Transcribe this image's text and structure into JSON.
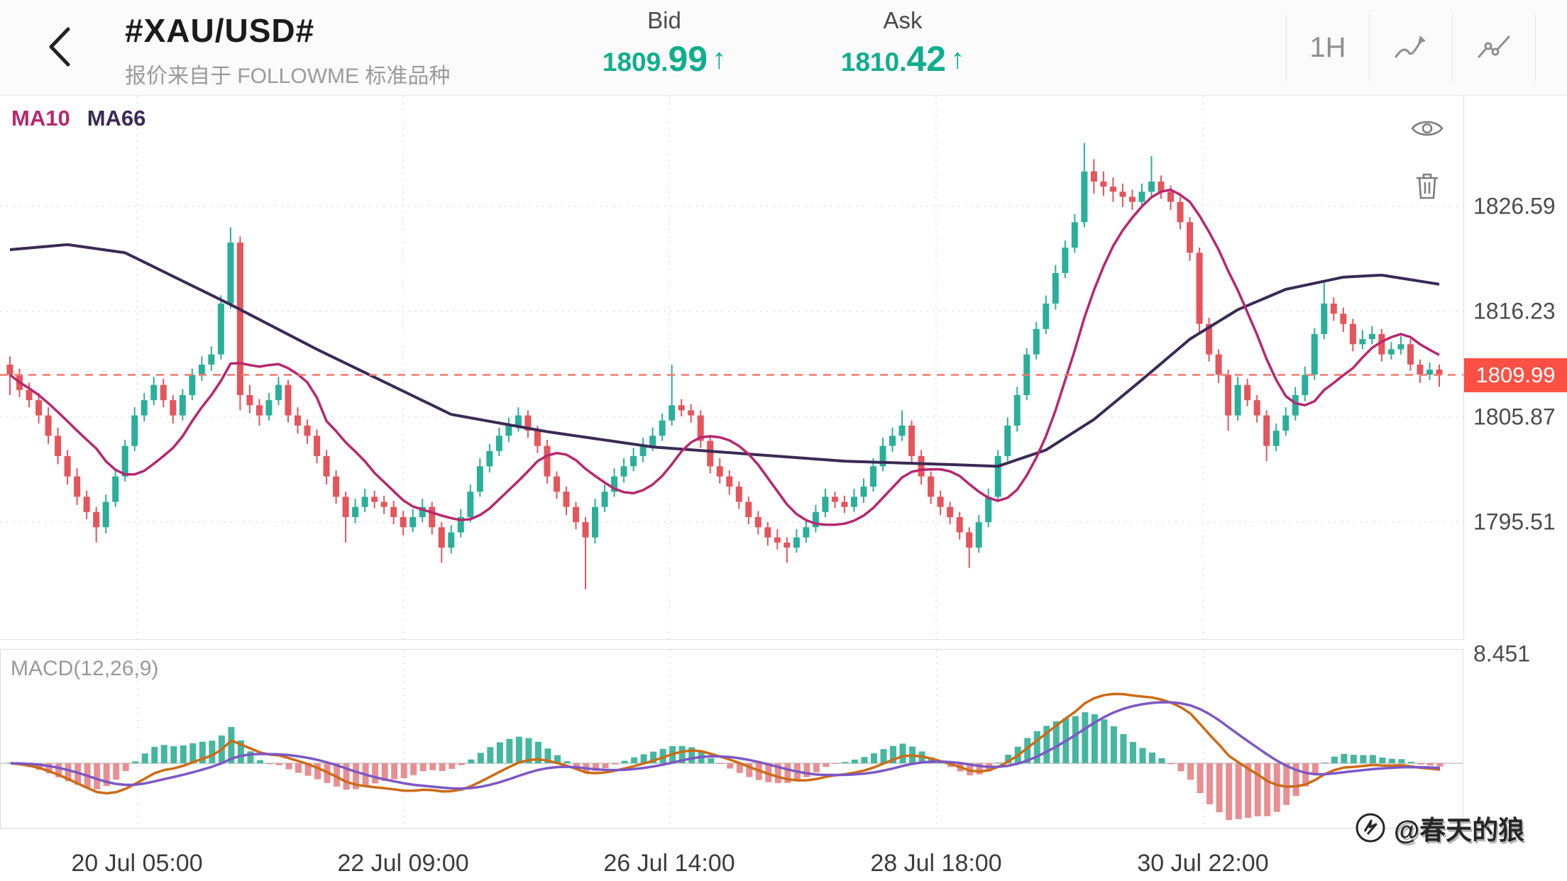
{
  "header": {
    "symbol": "#XAU/USD#",
    "source_note": "报价来自于 FOLLOWME 标准品种",
    "bid_label": "Bid",
    "bid_value": "1809.99",
    "ask_label": "Ask",
    "ask_value": "1810.42",
    "up_arrow": "↑",
    "timeframe": "1H"
  },
  "chart": {
    "ma_labels": {
      "ma10": "MA10",
      "ma66": "MA66"
    },
    "price_axis": [
      "1826.59",
      "1816.23",
      "1805.87",
      "1795.51"
    ],
    "current_price": "1809.99",
    "macd_label": "MACD(12,26,9)",
    "macd_axis_value": "8.451",
    "time_axis": [
      "20 Jul 05:00",
      "22 Jul 09:00",
      "26 Jul 14:00",
      "28 Jul 18:00",
      "30 Jul 22:00"
    ]
  },
  "watermark": "@春天的狼",
  "colors": {
    "candle_up": "#2aaf9b",
    "candle_down": "#e4555c",
    "ma10": "#b8266f",
    "ma66": "#3a2a56",
    "last_price_line": "#f4796d",
    "price_tag_bg": "#fb5044",
    "quote_green": "#0fae8d",
    "macd_bar_up": "#45b7a0",
    "macd_bar_down": "#e78f92",
    "macd_dif": "#cc6b16",
    "macd_dea": "#7d57c5"
  },
  "chart_data": {
    "type": "candlestick",
    "symbol": "XAU/USD",
    "timeframe": "1H",
    "title": "#XAU/USD# 1H candlestick chart with MA10, MA66 overlays and MACD(12,26,9) sub-chart",
    "x_tick_labels": [
      "20 Jul 05:00",
      "22 Jul 09:00",
      "26 Jul 14:00",
      "28 Jul 18:00",
      "30 Jul 22:00"
    ],
    "y_ticks": [
      1826.59,
      1816.23,
      1805.87,
      1795.51
    ],
    "y_range_visible": [
      1784.4,
      1837.5
    ],
    "last_price": 1809.99,
    "bid": 1809.99,
    "ask": 1810.42,
    "macd_scale_max": 8.451,
    "sub_indicator": {
      "type": "macd",
      "params": [
        12,
        26,
        9
      ]
    },
    "overlays": [
      {
        "name": "MA10",
        "color": "#b8266f"
      },
      {
        "name": "MA66",
        "color": "#3a2a56"
      }
    ],
    "ohlc": [
      [
        1811.0,
        1811.8,
        1808.0,
        1810.0
      ],
      [
        1810.0,
        1810.6,
        1807.8,
        1808.5
      ],
      [
        1808.5,
        1809.2,
        1806.8,
        1807.5
      ],
      [
        1807.5,
        1808.2,
        1805.2,
        1806.0
      ],
      [
        1806.0,
        1806.8,
        1803.2,
        1804.0
      ],
      [
        1804.0,
        1804.8,
        1801.2,
        1802.0
      ],
      [
        1802.0,
        1802.6,
        1799.2,
        1800.0
      ],
      [
        1800.0,
        1800.8,
        1797.2,
        1798.0
      ],
      [
        1798.0,
        1798.6,
        1795.8,
        1796.5
      ],
      [
        1796.5,
        1797.0,
        1793.5,
        1795.0
      ],
      [
        1795.0,
        1798.2,
        1794.4,
        1797.5
      ],
      [
        1797.5,
        1800.8,
        1797.0,
        1800.0
      ],
      [
        1800.0,
        1803.6,
        1799.5,
        1803.0
      ],
      [
        1803.0,
        1806.8,
        1802.5,
        1806.0
      ],
      [
        1806.0,
        1808.2,
        1805.4,
        1807.5
      ],
      [
        1807.5,
        1809.8,
        1807.0,
        1809.0
      ],
      [
        1809.0,
        1809.6,
        1806.8,
        1807.5
      ],
      [
        1807.5,
        1808.0,
        1805.2,
        1806.0
      ],
      [
        1806.0,
        1808.6,
        1805.5,
        1808.0
      ],
      [
        1808.0,
        1810.6,
        1807.5,
        1810.0
      ],
      [
        1810.0,
        1811.8,
        1809.4,
        1811.0
      ],
      [
        1811.0,
        1812.8,
        1810.4,
        1812.0
      ],
      [
        1812.0,
        1817.8,
        1811.5,
        1817.0
      ],
      [
        1817.0,
        1824.5,
        1816.5,
        1823.0
      ],
      [
        1823.0,
        1823.6,
        1806.5,
        1808.0
      ],
      [
        1808.0,
        1809.0,
        1806.2,
        1807.0
      ],
      [
        1807.0,
        1807.6,
        1805.0,
        1806.0
      ],
      [
        1806.0,
        1808.2,
        1805.5,
        1807.5
      ],
      [
        1807.5,
        1809.8,
        1807.0,
        1809.0
      ],
      [
        1809.0,
        1809.5,
        1805.3,
        1806.0
      ],
      [
        1806.0,
        1806.8,
        1804.2,
        1805.0
      ],
      [
        1805.0,
        1805.6,
        1803.2,
        1804.0
      ],
      [
        1804.0,
        1804.6,
        1801.3,
        1802.0
      ],
      [
        1802.0,
        1802.6,
        1799.2,
        1800.0
      ],
      [
        1800.0,
        1800.6,
        1797.3,
        1798.0
      ],
      [
        1798.0,
        1798.5,
        1793.5,
        1796.0
      ],
      [
        1796.0,
        1797.8,
        1795.4,
        1797.0
      ],
      [
        1797.0,
        1798.8,
        1796.5,
        1798.0
      ],
      [
        1798.0,
        1798.6,
        1796.9,
        1797.5
      ],
      [
        1797.5,
        1798.1,
        1796.3,
        1797.0
      ],
      [
        1797.0,
        1797.6,
        1795.3,
        1796.0
      ],
      [
        1796.0,
        1796.6,
        1794.2,
        1795.0
      ],
      [
        1795.0,
        1796.8,
        1794.5,
        1796.0
      ],
      [
        1796.0,
        1797.8,
        1795.5,
        1797.0
      ],
      [
        1797.0,
        1797.5,
        1794.3,
        1795.0
      ],
      [
        1795.0,
        1795.5,
        1791.5,
        1793.0
      ],
      [
        1793.0,
        1795.2,
        1792.4,
        1794.5
      ],
      [
        1794.5,
        1796.8,
        1794.0,
        1796.0
      ],
      [
        1796.0,
        1799.2,
        1795.5,
        1798.5
      ],
      [
        1798.5,
        1801.8,
        1798.0,
        1801.0
      ],
      [
        1801.0,
        1803.2,
        1800.4,
        1802.5
      ],
      [
        1802.5,
        1804.8,
        1802.0,
        1804.0
      ],
      [
        1804.0,
        1805.8,
        1803.4,
        1805.0
      ],
      [
        1805.0,
        1806.8,
        1804.4,
        1806.0
      ],
      [
        1806.0,
        1806.5,
        1803.8,
        1804.5
      ],
      [
        1804.5,
        1805.0,
        1802.3,
        1803.0
      ],
      [
        1803.0,
        1803.6,
        1799.3,
        1800.0
      ],
      [
        1800.0,
        1800.5,
        1797.8,
        1798.5
      ],
      [
        1798.5,
        1799.0,
        1796.2,
        1797.0
      ],
      [
        1797.0,
        1797.5,
        1794.8,
        1795.5
      ],
      [
        1795.5,
        1796.0,
        1788.9,
        1794.0
      ],
      [
        1794.0,
        1797.8,
        1793.4,
        1797.0
      ],
      [
        1797.0,
        1799.2,
        1796.5,
        1798.5
      ],
      [
        1798.5,
        1800.8,
        1798.0,
        1800.0
      ],
      [
        1800.0,
        1801.8,
        1799.4,
        1801.0
      ],
      [
        1801.0,
        1802.8,
        1800.5,
        1802.0
      ],
      [
        1802.0,
        1803.8,
        1801.4,
        1803.0
      ],
      [
        1803.0,
        1804.8,
        1802.5,
        1804.0
      ],
      [
        1804.0,
        1806.2,
        1803.5,
        1805.5
      ],
      [
        1805.5,
        1811.0,
        1805.0,
        1807.0
      ],
      [
        1807.0,
        1807.6,
        1805.9,
        1806.5
      ],
      [
        1806.5,
        1807.1,
        1805.3,
        1806.0
      ],
      [
        1806.0,
        1806.5,
        1802.8,
        1803.5
      ],
      [
        1803.5,
        1804.0,
        1800.3,
        1801.0
      ],
      [
        1801.0,
        1801.8,
        1799.3,
        1800.0
      ],
      [
        1800.0,
        1800.6,
        1798.2,
        1799.0
      ],
      [
        1799.0,
        1799.5,
        1796.8,
        1797.5
      ],
      [
        1797.5,
        1798.0,
        1795.3,
        1796.0
      ],
      [
        1796.0,
        1796.6,
        1794.3,
        1795.0
      ],
      [
        1795.0,
        1795.5,
        1793.2,
        1794.0
      ],
      [
        1794.0,
        1794.8,
        1792.8,
        1793.5
      ],
      [
        1793.5,
        1794.0,
        1791.5,
        1793.0
      ],
      [
        1793.0,
        1794.8,
        1792.5,
        1794.0
      ],
      [
        1794.0,
        1795.8,
        1793.5,
        1795.0
      ],
      [
        1795.0,
        1797.2,
        1794.5,
        1796.5
      ],
      [
        1796.5,
        1798.8,
        1796.0,
        1798.0
      ],
      [
        1798.0,
        1798.5,
        1796.9,
        1797.5
      ],
      [
        1797.5,
        1798.1,
        1796.4,
        1797.0
      ],
      [
        1797.0,
        1798.8,
        1796.5,
        1798.0
      ],
      [
        1798.0,
        1799.8,
        1797.4,
        1799.0
      ],
      [
        1799.0,
        1801.8,
        1798.5,
        1801.0
      ],
      [
        1801.0,
        1803.8,
        1800.5,
        1803.0
      ],
      [
        1803.0,
        1804.8,
        1802.4,
        1804.0
      ],
      [
        1804.0,
        1806.5,
        1803.5,
        1805.0
      ],
      [
        1805.0,
        1805.5,
        1801.3,
        1802.0
      ],
      [
        1802.0,
        1802.6,
        1799.2,
        1800.0
      ],
      [
        1800.0,
        1800.5,
        1797.3,
        1798.0
      ],
      [
        1798.0,
        1798.6,
        1796.2,
        1797.0
      ],
      [
        1797.0,
        1797.5,
        1795.3,
        1796.0
      ],
      [
        1796.0,
        1796.5,
        1793.8,
        1794.5
      ],
      [
        1794.5,
        1795.0,
        1791.0,
        1793.0
      ],
      [
        1793.0,
        1796.2,
        1792.5,
        1795.5
      ],
      [
        1795.5,
        1798.8,
        1795.0,
        1798.0
      ],
      [
        1798.0,
        1802.6,
        1797.5,
        1802.0
      ],
      [
        1802.0,
        1805.8,
        1801.5,
        1805.0
      ],
      [
        1805.0,
        1808.8,
        1804.4,
        1808.0
      ],
      [
        1808.0,
        1812.6,
        1807.5,
        1812.0
      ],
      [
        1812.0,
        1815.2,
        1811.5,
        1814.5
      ],
      [
        1814.5,
        1817.8,
        1814.0,
        1817.0
      ],
      [
        1817.0,
        1820.8,
        1816.4,
        1820.0
      ],
      [
        1820.0,
        1823.2,
        1819.5,
        1822.5
      ],
      [
        1822.5,
        1825.8,
        1822.0,
        1825.0
      ],
      [
        1825.0,
        1832.8,
        1824.5,
        1830.0
      ],
      [
        1830.0,
        1831.2,
        1827.8,
        1829.0
      ],
      [
        1829.0,
        1830.0,
        1827.6,
        1828.5
      ],
      [
        1828.5,
        1829.4,
        1827.0,
        1828.0
      ],
      [
        1828.0,
        1828.8,
        1826.5,
        1827.5
      ],
      [
        1827.5,
        1828.2,
        1826.2,
        1827.0
      ],
      [
        1827.0,
        1828.8,
        1826.5,
        1828.0
      ],
      [
        1828.0,
        1831.5,
        1827.5,
        1829.0
      ],
      [
        1829.0,
        1829.6,
        1827.3,
        1828.0
      ],
      [
        1828.0,
        1828.6,
        1826.2,
        1827.0
      ],
      [
        1827.0,
        1827.5,
        1824.3,
        1825.0
      ],
      [
        1825.0,
        1825.5,
        1821.2,
        1822.0
      ],
      [
        1822.0,
        1822.5,
        1814.2,
        1815.0
      ],
      [
        1815.0,
        1815.6,
        1811.3,
        1812.0
      ],
      [
        1812.0,
        1812.5,
        1809.2,
        1810.0
      ],
      [
        1810.0,
        1810.5,
        1804.5,
        1806.0
      ],
      [
        1806.0,
        1809.8,
        1805.5,
        1809.0
      ],
      [
        1809.0,
        1809.6,
        1806.9,
        1807.5
      ],
      [
        1807.5,
        1808.0,
        1805.3,
        1806.0
      ],
      [
        1806.0,
        1806.5,
        1801.5,
        1803.0
      ],
      [
        1803.0,
        1805.2,
        1802.5,
        1804.5
      ],
      [
        1804.5,
        1806.8,
        1804.0,
        1806.0
      ],
      [
        1806.0,
        1808.8,
        1805.5,
        1808.0
      ],
      [
        1808.0,
        1810.8,
        1807.4,
        1810.0
      ],
      [
        1810.0,
        1814.6,
        1809.5,
        1814.0
      ],
      [
        1814.0,
        1819.2,
        1813.5,
        1817.0
      ],
      [
        1817.0,
        1817.6,
        1815.3,
        1816.0
      ],
      [
        1816.0,
        1816.6,
        1814.2,
        1815.0
      ],
      [
        1815.0,
        1815.5,
        1812.3,
        1813.0
      ],
      [
        1813.0,
        1814.4,
        1812.5,
        1813.5
      ],
      [
        1813.5,
        1814.8,
        1813.0,
        1814.0
      ],
      [
        1814.0,
        1814.5,
        1811.3,
        1812.0
      ],
      [
        1812.0,
        1813.2,
        1811.5,
        1812.5
      ],
      [
        1812.5,
        1813.8,
        1812.0,
        1813.0
      ],
      [
        1813.0,
        1813.5,
        1810.4,
        1811.0
      ],
      [
        1811.0,
        1811.5,
        1809.2,
        1810.0
      ],
      [
        1810.0,
        1811.2,
        1809.5,
        1810.5
      ],
      [
        1810.5,
        1811.0,
        1808.8,
        1809.99
      ]
    ],
    "ma66_waypoints": [
      [
        0,
        1822.3
      ],
      [
        6,
        1822.8
      ],
      [
        12,
        1822.0
      ],
      [
        23,
        1816.9
      ],
      [
        32,
        1812.5
      ],
      [
        46,
        1806.1
      ],
      [
        56,
        1804.4
      ],
      [
        67,
        1802.9
      ],
      [
        77,
        1802.2
      ],
      [
        87,
        1801.5
      ],
      [
        97,
        1801.2
      ],
      [
        103,
        1801.0
      ],
      [
        108,
        1802.6
      ],
      [
        113,
        1805.6
      ],
      [
        118,
        1809.5
      ],
      [
        123,
        1813.5
      ],
      [
        128,
        1816.4
      ],
      [
        133,
        1818.4
      ],
      [
        139,
        1819.6
      ],
      [
        143,
        1819.8
      ],
      [
        149,
        1818.9
      ]
    ]
  }
}
